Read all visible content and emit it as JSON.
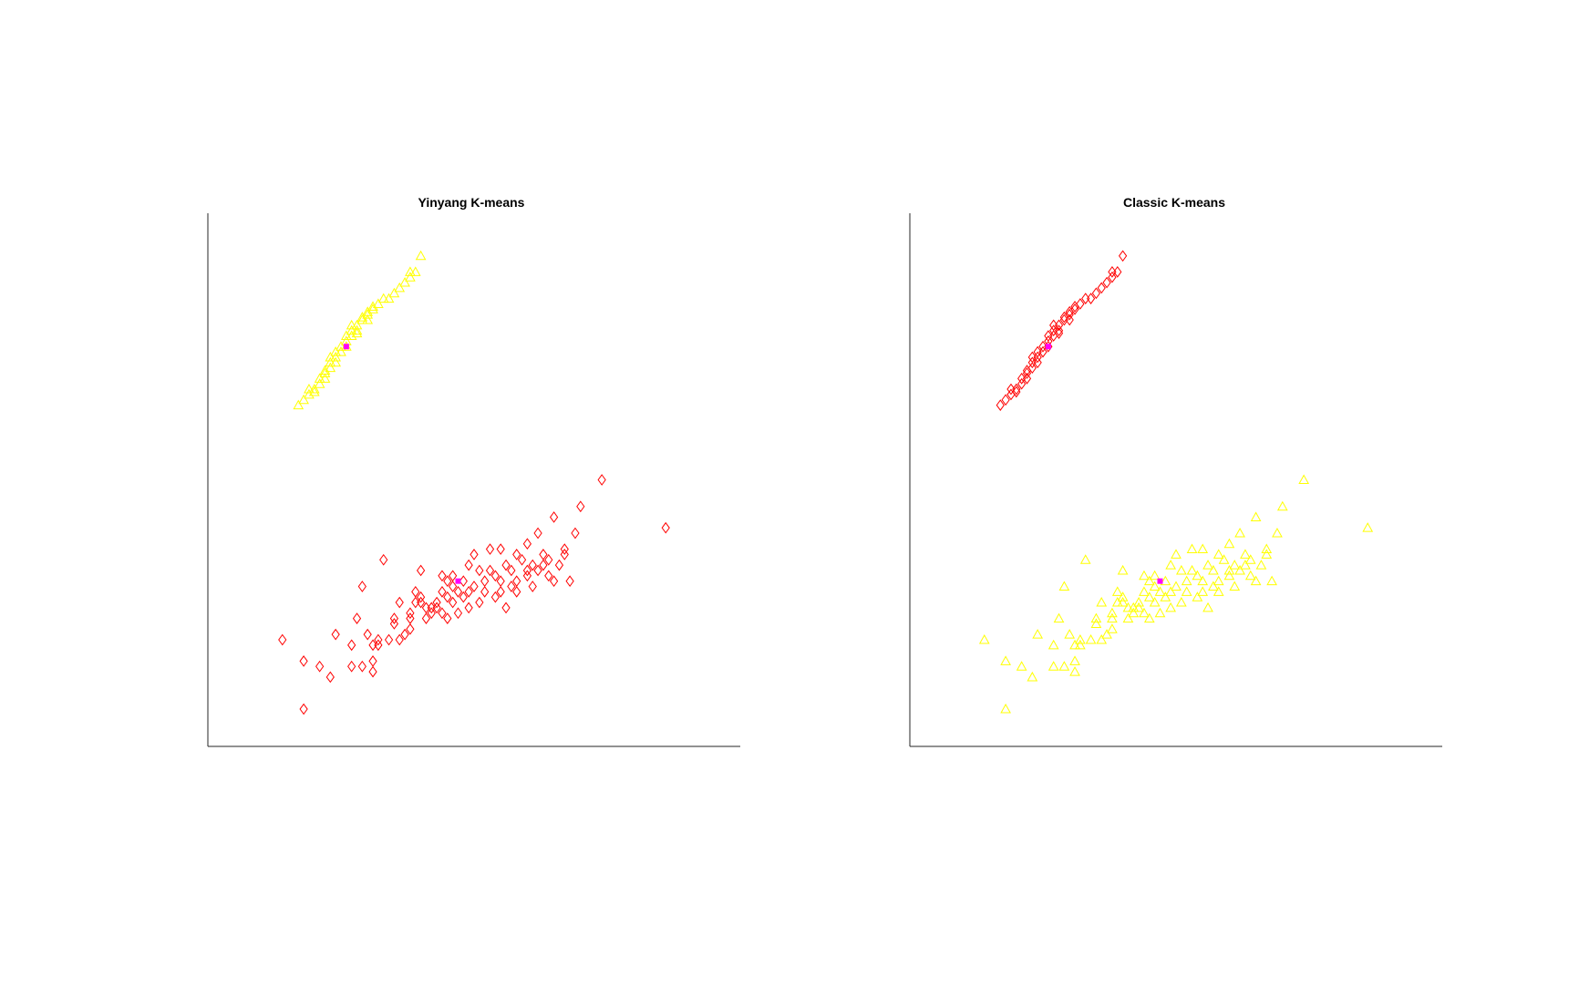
{
  "colors": {
    "background": "#ffffff",
    "axis": "#262626",
    "red_cluster": "#ff0000",
    "yellow_cluster": "#ffff00",
    "centroid": "#ff00ff"
  },
  "chart_data": [
    {
      "type": "scatter",
      "title": "Yinyang K-means",
      "xlabel": "",
      "ylabel": "",
      "grid": false,
      "legend": "none",
      "axes": "left-bottom",
      "xlim": [
        0,
        100
      ],
      "ylim": [
        0,
        100
      ],
      "series": [
        {
          "marker": "triangle",
          "color": "#ffff00",
          "points": [
            [
              17,
              64
            ],
            [
              18,
              65
            ],
            [
              19,
              66
            ],
            [
              20,
              67
            ],
            [
              21,
              68
            ],
            [
              21,
              69
            ],
            [
              22,
              70
            ],
            [
              22,
              70.5
            ],
            [
              23,
              71
            ],
            [
              23,
              72
            ],
            [
              24,
              73
            ],
            [
              24,
              74
            ],
            [
              25,
              74
            ],
            [
              25,
              75
            ],
            [
              26,
              76
            ],
            [
              26,
              77
            ],
            [
              27,
              77
            ],
            [
              27,
              78
            ],
            [
              28,
              78
            ],
            [
              28,
              79
            ],
            [
              29,
              80
            ],
            [
              29,
              80.5
            ],
            [
              30,
              81
            ],
            [
              30,
              81.5
            ],
            [
              31,
              82
            ],
            [
              31,
              82.5
            ],
            [
              32,
              83
            ],
            [
              33,
              84
            ],
            [
              34,
              84
            ],
            [
              35,
              85
            ],
            [
              36,
              86
            ],
            [
              37,
              87
            ],
            [
              38,
              88
            ],
            [
              38,
              89
            ],
            [
              39,
              89
            ],
            [
              40,
              92
            ],
            [
              20,
              66.5
            ],
            [
              22,
              69
            ],
            [
              24,
              72
            ],
            [
              26,
              75
            ],
            [
              28,
              77.5
            ],
            [
              30,
              80
            ],
            [
              19,
              67
            ],
            [
              23,
              73
            ],
            [
              27,
              79
            ]
          ]
        },
        {
          "marker": "diamond",
          "color": "#ff0000",
          "points": [
            [
              14,
              20
            ],
            [
              18,
              7
            ],
            [
              18,
              16
            ],
            [
              21,
              15
            ],
            [
              23,
              13
            ],
            [
              24,
              21
            ],
            [
              27,
              15
            ],
            [
              27,
              19
            ],
            [
              28,
              24
            ],
            [
              29,
              15
            ],
            [
              30,
              21
            ],
            [
              31,
              14
            ],
            [
              31,
              16
            ],
            [
              31,
              19
            ],
            [
              32,
              20
            ],
            [
              32,
              19
            ],
            [
              34,
              20
            ],
            [
              35,
              23
            ],
            [
              35,
              24
            ],
            [
              36,
              20
            ],
            [
              37,
              21
            ],
            [
              38,
              22
            ],
            [
              38,
              24
            ],
            [
              38,
              25
            ],
            [
              39,
              27
            ],
            [
              39,
              29
            ],
            [
              40,
              28
            ],
            [
              40,
              27
            ],
            [
              41,
              26
            ],
            [
              41,
              24
            ],
            [
              42,
              25
            ],
            [
              42,
              26
            ],
            [
              43,
              27
            ],
            [
              44,
              25
            ],
            [
              44,
              29
            ],
            [
              44,
              32
            ],
            [
              45,
              24
            ],
            [
              45,
              28
            ],
            [
              45,
              31
            ],
            [
              46,
              30
            ],
            [
              46,
              27
            ],
            [
              47,
              25
            ],
            [
              47,
              29
            ],
            [
              48,
              31
            ],
            [
              48,
              28
            ],
            [
              49,
              29
            ],
            [
              49,
              26
            ],
            [
              50,
              30
            ],
            [
              51,
              33
            ],
            [
              51,
              27
            ],
            [
              52,
              31
            ],
            [
              52,
              29
            ],
            [
              53,
              33
            ],
            [
              54,
              28
            ],
            [
              54,
              32
            ],
            [
              55,
              31
            ],
            [
              55,
              29
            ],
            [
              56,
              34
            ],
            [
              56,
              26
            ],
            [
              57,
              33
            ],
            [
              57,
              30
            ],
            [
              58,
              29
            ],
            [
              58,
              31
            ],
            [
              59,
              35
            ],
            [
              60,
              33
            ],
            [
              61,
              30
            ],
            [
              61,
              34
            ],
            [
              62,
              33
            ],
            [
              63,
              36
            ],
            [
              63,
              34
            ],
            [
              64,
              32
            ],
            [
              64,
              35
            ],
            [
              65,
              31
            ],
            [
              66,
              34
            ],
            [
              67,
              36
            ],
            [
              68,
              31
            ],
            [
              69,
              40
            ],
            [
              29,
              30
            ],
            [
              33,
              35
            ],
            [
              40,
              33
            ],
            [
              50,
              36
            ],
            [
              53,
              37
            ],
            [
              55,
              37
            ],
            [
              60,
              38
            ],
            [
              62,
              40
            ],
            [
              65,
              43
            ],
            [
              67,
              37
            ],
            [
              70,
              45
            ],
            [
              74,
              50
            ],
            [
              86,
              41
            ],
            [
              36,
              27
            ],
            [
              43,
              26
            ],
            [
              46,
              32
            ],
            [
              49,
              34
            ],
            [
              58,
              36
            ],
            [
              60,
              32
            ]
          ]
        }
      ],
      "centroids": [
        [
          26,
          75
        ],
        [
          47,
          31
        ]
      ]
    },
    {
      "type": "scatter",
      "title": "Classic K-means",
      "xlabel": "",
      "ylabel": "",
      "grid": false,
      "legend": "none",
      "axes": "left-bottom",
      "xlim": [
        0,
        100
      ],
      "ylim": [
        0,
        100
      ],
      "series": [
        {
          "marker": "diamond",
          "color": "#ff0000",
          "points": [
            [
              17,
              64
            ],
            [
              18,
              65
            ],
            [
              19,
              66
            ],
            [
              20,
              67
            ],
            [
              21,
              68
            ],
            [
              21,
              69
            ],
            [
              22,
              70
            ],
            [
              22,
              70.5
            ],
            [
              23,
              71
            ],
            [
              23,
              72
            ],
            [
              24,
              73
            ],
            [
              24,
              74
            ],
            [
              25,
              74
            ],
            [
              25,
              75
            ],
            [
              26,
              76
            ],
            [
              26,
              77
            ],
            [
              27,
              77
            ],
            [
              27,
              78
            ],
            [
              28,
              78
            ],
            [
              28,
              79
            ],
            [
              29,
              80
            ],
            [
              29,
              80.5
            ],
            [
              30,
              81
            ],
            [
              30,
              81.5
            ],
            [
              31,
              82
            ],
            [
              31,
              82.5
            ],
            [
              32,
              83
            ],
            [
              33,
              84
            ],
            [
              34,
              84
            ],
            [
              35,
              85
            ],
            [
              36,
              86
            ],
            [
              37,
              87
            ],
            [
              38,
              88
            ],
            [
              38,
              89
            ],
            [
              39,
              89
            ],
            [
              40,
              92
            ],
            [
              20,
              66.5
            ],
            [
              22,
              69
            ],
            [
              24,
              72
            ],
            [
              26,
              75
            ],
            [
              28,
              77.5
            ],
            [
              30,
              80
            ],
            [
              19,
              67
            ],
            [
              23,
              73
            ],
            [
              27,
              79
            ]
          ]
        },
        {
          "marker": "triangle",
          "color": "#ffff00",
          "points": [
            [
              14,
              20
            ],
            [
              18,
              7
            ],
            [
              18,
              16
            ],
            [
              21,
              15
            ],
            [
              23,
              13
            ],
            [
              24,
              21
            ],
            [
              27,
              15
            ],
            [
              27,
              19
            ],
            [
              28,
              24
            ],
            [
              29,
              15
            ],
            [
              30,
              21
            ],
            [
              31,
              14
            ],
            [
              31,
              16
            ],
            [
              31,
              19
            ],
            [
              32,
              20
            ],
            [
              32,
              19
            ],
            [
              34,
              20
            ],
            [
              35,
              23
            ],
            [
              35,
              24
            ],
            [
              36,
              20
            ],
            [
              37,
              21
            ],
            [
              38,
              22
            ],
            [
              38,
              24
            ],
            [
              38,
              25
            ],
            [
              39,
              27
            ],
            [
              39,
              29
            ],
            [
              40,
              28
            ],
            [
              40,
              27
            ],
            [
              41,
              26
            ],
            [
              41,
              24
            ],
            [
              42,
              25
            ],
            [
              42,
              26
            ],
            [
              43,
              27
            ],
            [
              44,
              25
            ],
            [
              44,
              29
            ],
            [
              44,
              32
            ],
            [
              45,
              24
            ],
            [
              45,
              28
            ],
            [
              45,
              31
            ],
            [
              46,
              30
            ],
            [
              46,
              27
            ],
            [
              47,
              25
            ],
            [
              47,
              29
            ],
            [
              48,
              31
            ],
            [
              48,
              28
            ],
            [
              49,
              29
            ],
            [
              49,
              26
            ],
            [
              50,
              30
            ],
            [
              51,
              33
            ],
            [
              51,
              27
            ],
            [
              52,
              31
            ],
            [
              52,
              29
            ],
            [
              53,
              33
            ],
            [
              54,
              28
            ],
            [
              54,
              32
            ],
            [
              55,
              31
            ],
            [
              55,
              29
            ],
            [
              56,
              34
            ],
            [
              56,
              26
            ],
            [
              57,
              33
            ],
            [
              57,
              30
            ],
            [
              58,
              29
            ],
            [
              58,
              31
            ],
            [
              59,
              35
            ],
            [
              60,
              33
            ],
            [
              61,
              30
            ],
            [
              61,
              34
            ],
            [
              62,
              33
            ],
            [
              63,
              36
            ],
            [
              63,
              34
            ],
            [
              64,
              32
            ],
            [
              64,
              35
            ],
            [
              65,
              31
            ],
            [
              66,
              34
            ],
            [
              67,
              36
            ],
            [
              68,
              31
            ],
            [
              69,
              40
            ],
            [
              29,
              30
            ],
            [
              33,
              35
            ],
            [
              40,
              33
            ],
            [
              50,
              36
            ],
            [
              53,
              37
            ],
            [
              55,
              37
            ],
            [
              60,
              38
            ],
            [
              62,
              40
            ],
            [
              65,
              43
            ],
            [
              67,
              37
            ],
            [
              70,
              45
            ],
            [
              74,
              50
            ],
            [
              86,
              41
            ],
            [
              36,
              27
            ],
            [
              43,
              26
            ],
            [
              46,
              32
            ],
            [
              49,
              34
            ],
            [
              58,
              36
            ],
            [
              60,
              32
            ]
          ]
        }
      ],
      "centroids": [
        [
          26,
          75
        ],
        [
          47,
          31
        ]
      ]
    }
  ]
}
